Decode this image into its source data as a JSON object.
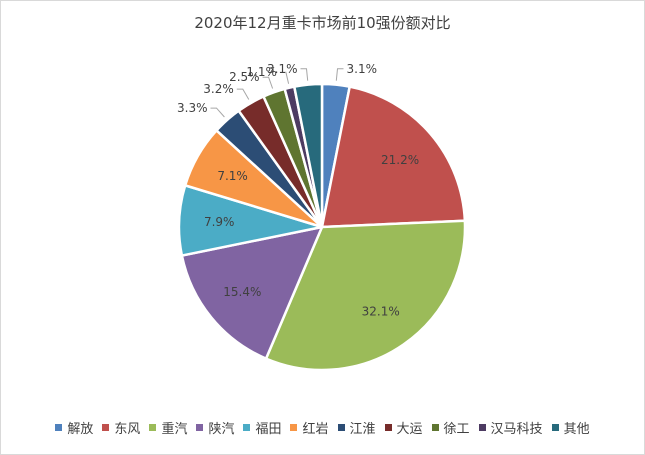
{
  "chart_data": {
    "type": "pie",
    "title": "2020年12月重卡市场前10强份额对比",
    "series": [
      {
        "name": "解放",
        "value": 3.1,
        "label": "3.1%",
        "color": "#4f81bd"
      },
      {
        "name": "东风",
        "value": 21.2,
        "label": "21.2%",
        "color": "#c0504d"
      },
      {
        "name": "重汽",
        "value": 32.1,
        "label": "32.1%",
        "color": "#9bbb59"
      },
      {
        "name": "陕汽",
        "value": 15.4,
        "label": "15.4%",
        "color": "#8064a2"
      },
      {
        "name": "福田",
        "value": 7.9,
        "label": "7.9%",
        "color": "#4bacc6"
      },
      {
        "name": "红岩",
        "value": 7.1,
        "label": "7.1%",
        "color": "#f79646"
      },
      {
        "name": "江淮",
        "value": 3.3,
        "label": "3.3%",
        "color": "#2c4d75"
      },
      {
        "name": "大运",
        "value": 3.2,
        "label": "3.2%",
        "color": "#772c2a"
      },
      {
        "name": "徐工",
        "value": 2.5,
        "label": "2.5%",
        "color": "#5f7530"
      },
      {
        "name": "汉马科技",
        "value": 1.1,
        "label": "1.1%",
        "color": "#4d3b62"
      },
      {
        "name": "其他",
        "value": 3.1,
        "label": "3.1%",
        "color": "#276a7c"
      }
    ],
    "legend_position": "bottom"
  }
}
